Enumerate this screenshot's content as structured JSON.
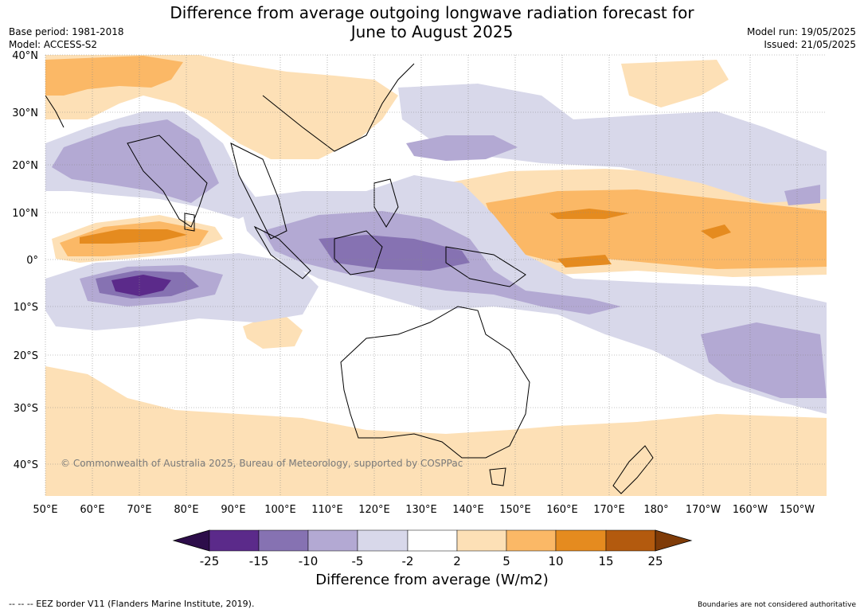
{
  "title_line1": "Difference from average outgoing longwave radiation forecast for",
  "title_line2": "June to August 2025",
  "base_period": "Base period: 1981-2018",
  "model": "Model: ACCESS-S2",
  "model_run": "Model run: 19/05/2025",
  "issued": "Issued: 21/05/2025",
  "lat_labels": [
    "40°N",
    "30°N",
    "20°N",
    "10°N",
    "0°",
    "10°S",
    "20°S",
    "30°S",
    "40°S"
  ],
  "lon_labels": [
    "50°E",
    "60°E",
    "70°E",
    "80°E",
    "90°E",
    "100°E",
    "110°E",
    "120°E",
    "130°E",
    "140°E",
    "150°E",
    "160°E",
    "170°E",
    "180°",
    "170°W",
    "160°W",
    "150°W"
  ],
  "copyright": "© Commonwealth of Australia 2025, Bureau of Meteorology, supported by COSPPac",
  "colorbar": {
    "ticks": [
      "-25",
      "-15",
      "-10",
      "-5",
      "-2",
      "2",
      "5",
      "10",
      "15",
      "25"
    ],
    "colors": [
      "#2d0d4a",
      "#5b2a8a",
      "#8672b2",
      "#b3a9d3",
      "#d8d8ea",
      "#ffffff",
      "#fde0b6",
      "#fbb866",
      "#e58b1f",
      "#b35a0e",
      "#7f3b08"
    ],
    "title": "Difference from average (W/m2)"
  },
  "footer_left": "--  --  -- EEZ border V11 (Flanders Marine Institute, 2019).",
  "footer_right": "Boundaries are not considered authoritative"
}
